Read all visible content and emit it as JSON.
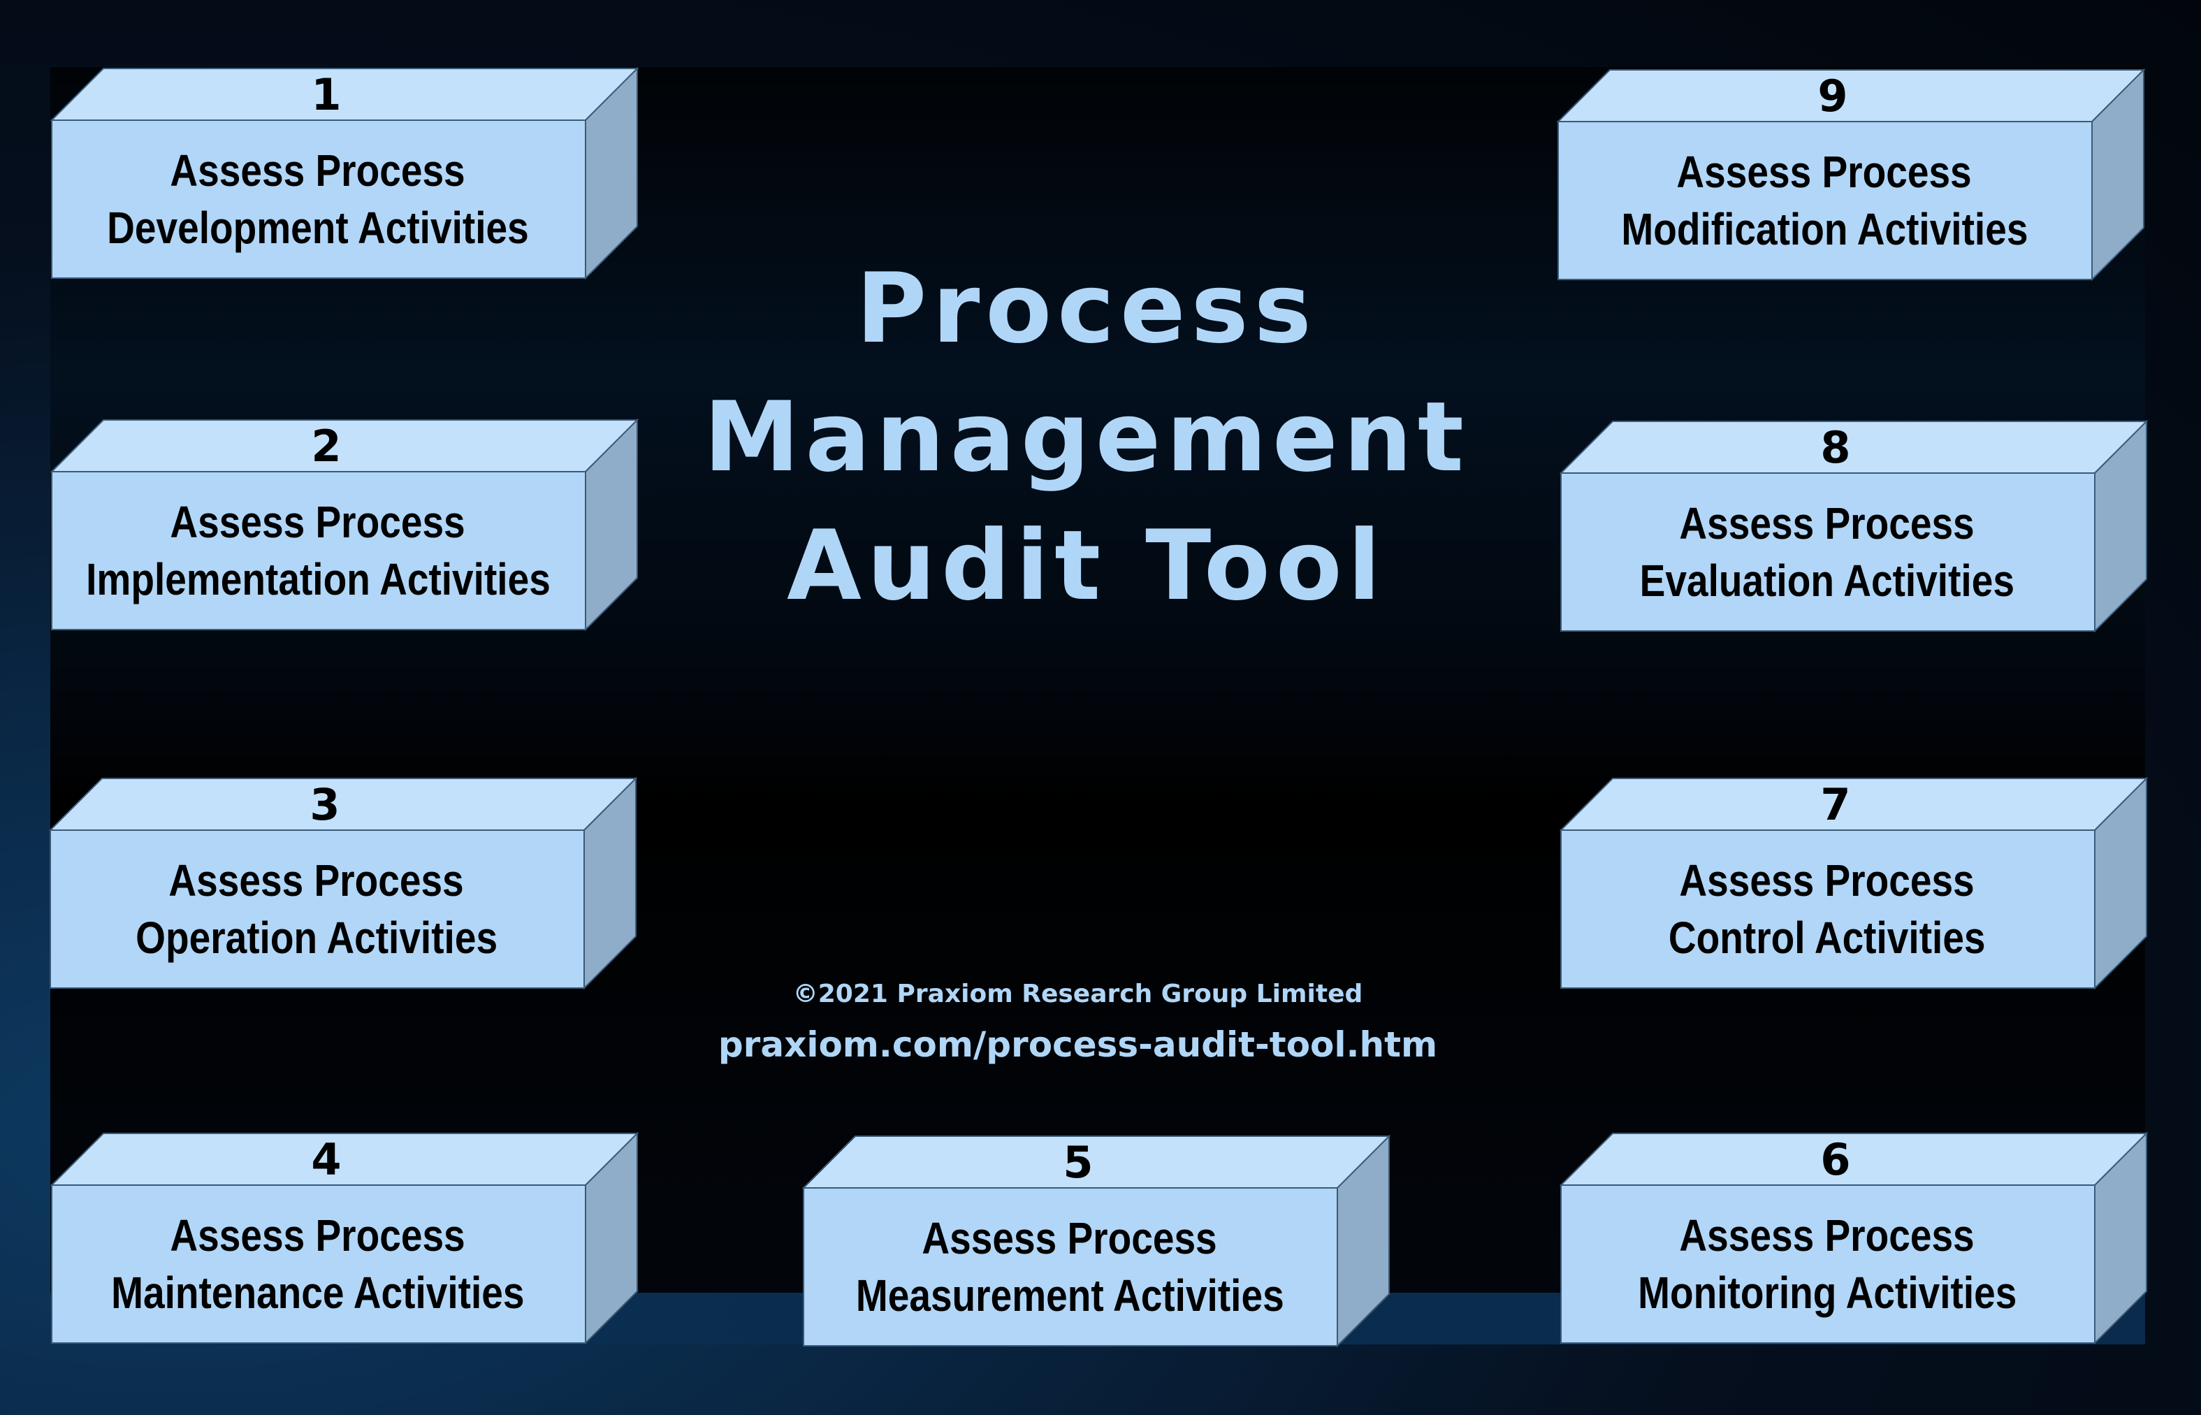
{
  "title": {
    "line1": "Process",
    "line2": "Management",
    "line3": "Audit Tool"
  },
  "footer": {
    "copyright": "©2021 Praxiom Research Group Limited",
    "url": "praxiom.com/process-audit-tool.htm"
  },
  "boxes": [
    {
      "number": "1",
      "line1": "Assess Process",
      "line2": "Development Activities"
    },
    {
      "number": "2",
      "line1": "Assess Process",
      "line2": "Implementation Activities"
    },
    {
      "number": "3",
      "line1": "Assess Process",
      "line2": "Operation Activities"
    },
    {
      "number": "4",
      "line1": "Assess Process",
      "line2": "Maintenance Activities"
    },
    {
      "number": "5",
      "line1": "Assess Process",
      "line2": "Measurement Activities"
    },
    {
      "number": "6",
      "line1": "Assess Process",
      "line2": "Monitoring Activities"
    },
    {
      "number": "7",
      "line1": "Assess Process",
      "line2": "Control Activities"
    },
    {
      "number": "8",
      "line1": "Assess Process",
      "line2": "Evaluation Activities"
    },
    {
      "number": "9",
      "line1": "Assess Process",
      "line2": "Modification Activities"
    }
  ],
  "colors": {
    "box_front": "#b1d6f7",
    "box_top": "#c3e1fb",
    "box_side": "#8fadc9",
    "title_text": "#b0d6f7"
  }
}
